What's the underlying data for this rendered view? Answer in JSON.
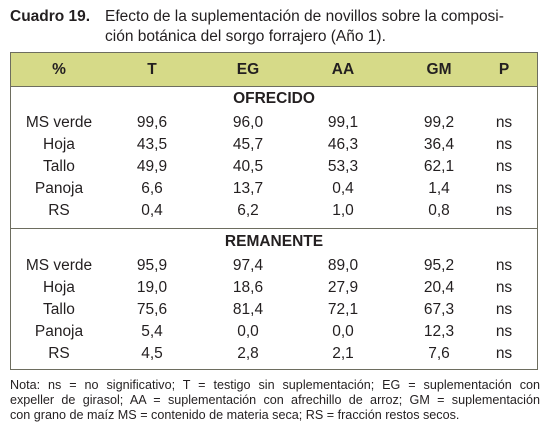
{
  "caption": {
    "label": "Cuadro 19.",
    "line1": "Efecto de la suplementación de novillos sobre la composi-",
    "line2": "ción botánica del sorgo forrajero (Año 1)."
  },
  "table": {
    "header_color": "#d6da88",
    "headers": [
      "%",
      "T",
      "EG",
      "AA",
      "GM",
      "P"
    ],
    "sections": [
      {
        "title": "OFRECIDO",
        "rows": [
          [
            "MS verde",
            "99,6",
            "96,0",
            "99,1",
            "99,2",
            "ns"
          ],
          [
            "Hoja",
            "43,5",
            "45,7",
            "46,3",
            "36,4",
            "ns"
          ],
          [
            "Tallo",
            "49,9",
            "40,5",
            "53,3",
            "62,1",
            "ns"
          ],
          [
            "Panoja",
            "6,6",
            "13,7",
            "0,4",
            "1,4",
            "ns"
          ],
          [
            "RS",
            "0,4",
            "6,2",
            "1,0",
            "0,8",
            "ns"
          ]
        ]
      },
      {
        "title": "REMANENTE",
        "rows": [
          [
            "MS verde",
            "95,9",
            "97,4",
            "89,0",
            "95,2",
            "ns"
          ],
          [
            "Hoja",
            "19,0",
            "18,6",
            "27,9",
            "20,4",
            "ns"
          ],
          [
            "Tallo",
            "75,6",
            "81,4",
            "72,1",
            "67,3",
            "ns"
          ],
          [
            "Panoja",
            "5,4",
            "0,0",
            "0,0",
            "12,3",
            "ns"
          ],
          [
            "RS",
            "4,5",
            "2,8",
            "2,1",
            "7,6",
            "ns"
          ]
        ]
      }
    ]
  },
  "note": {
    "line1": "Nota: ns = no significativo; T = testigo sin suplementación; EG = suplementación con",
    "line2": "expeller de girasol; AA = suplementación con afrechillo de arroz; GM = suplementación",
    "line3": "con grano de maíz MS = contenido de materia seca; RS = fracción restos secos."
  }
}
